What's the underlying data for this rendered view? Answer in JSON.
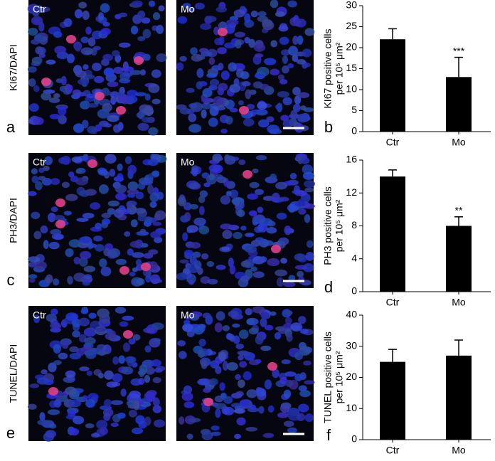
{
  "image_rows": [
    {
      "stain": "KI67/DAPI",
      "panel_label": "a",
      "images": [
        "Ctr",
        "Mo"
      ]
    },
    {
      "stain": "PH3/DAPI",
      "panel_label": "c",
      "images": [
        "Ctr",
        "Mo"
      ]
    },
    {
      "stain": "TUNEL/DAPI",
      "panel_label": "e",
      "images": [
        "Ctr",
        "Mo"
      ]
    }
  ],
  "chart_data": [
    {
      "type": "bar",
      "panel_label": "b",
      "ylabel": [
        "KI67 positive cells",
        "per 10⁵ μm²"
      ],
      "categories": [
        "Ctr",
        "Mo"
      ],
      "values": [
        22,
        13
      ],
      "errors": [
        2.5,
        4.7
      ],
      "significance": [
        null,
        "***"
      ],
      "color": "#000000",
      "ylim": [
        0,
        30
      ],
      "yticks": [
        0,
        5,
        10,
        15,
        20,
        25,
        30
      ]
    },
    {
      "type": "bar",
      "panel_label": "d",
      "ylabel": [
        "PH3 positive cells",
        "per 10⁵ μm²"
      ],
      "categories": [
        "Ctr",
        "Mo"
      ],
      "values": [
        14,
        8
      ],
      "errors": [
        0.8,
        1.1
      ],
      "significance": [
        null,
        "**"
      ],
      "color": "#000000",
      "ylim": [
        0,
        16
      ],
      "yticks": [
        0,
        4,
        8,
        12,
        16
      ]
    },
    {
      "type": "bar",
      "panel_label": "f",
      "ylabel": [
        "TUNEL positive cells",
        "per 10⁵ μm²"
      ],
      "categories": [
        "Ctr",
        "Mo"
      ],
      "values": [
        25,
        27
      ],
      "errors": [
        4,
        5
      ],
      "color": "#000000",
      "ylim": [
        0,
        40
      ],
      "yticks": [
        0,
        10,
        20,
        30,
        40
      ]
    }
  ]
}
